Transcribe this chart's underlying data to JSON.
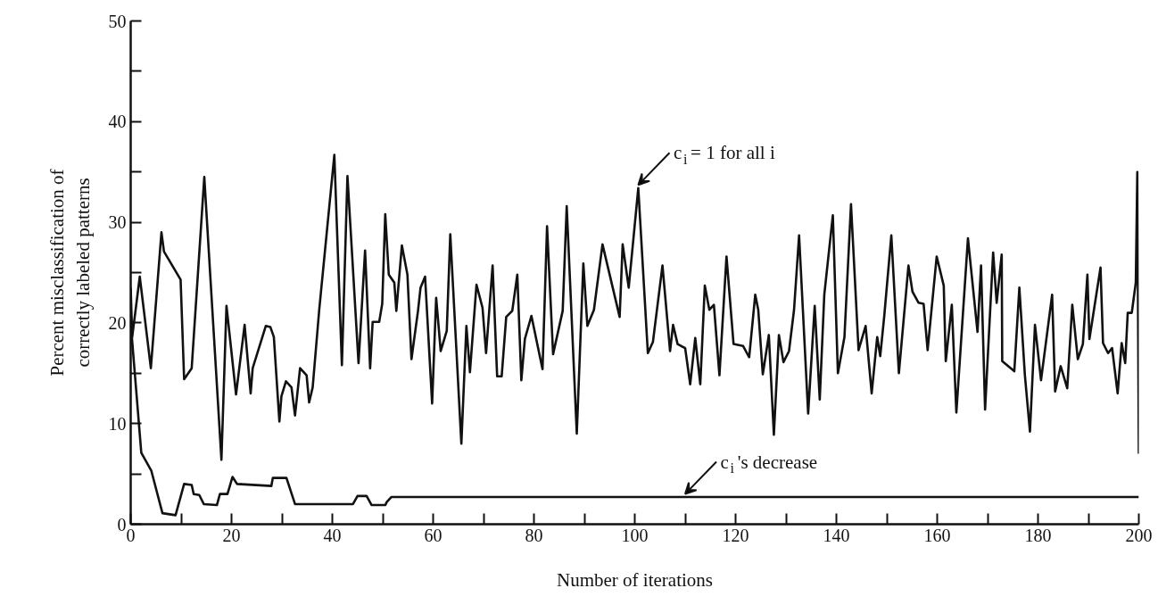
{
  "chart_data": {
    "type": "line",
    "xlabel": "Number of iterations",
    "ylabel": "Percent misclassification of correctly labeled patterns",
    "xlim": [
      0,
      200
    ],
    "ylim": [
      0,
      50
    ],
    "xticks": [
      0,
      {
        "value": 10,
        "label": null
      },
      20,
      {
        "value": 30,
        "label": null
      },
      40,
      {
        "value": 50,
        "label": null
      },
      60,
      {
        "value": 70,
        "label": null
      },
      80,
      {
        "value": 90,
        "label": null
      },
      100,
      {
        "value": 110,
        "label": null
      },
      120,
      {
        "value": 130,
        "label": null
      },
      140,
      {
        "value": 150,
        "label": null
      },
      160,
      {
        "value": 170,
        "label": null
      },
      180,
      {
        "value": 190,
        "label": null
      },
      200
    ],
    "yticks": [
      0,
      {
        "value": 5,
        "label": null
      },
      10,
      {
        "value": 15,
        "label": null
      },
      20,
      {
        "value": 25,
        "label": null
      },
      30,
      {
        "value": 35,
        "label": null
      },
      40,
      {
        "value": 45,
        "label": null
      },
      50
    ],
    "series": [
      {
        "color": "#111111",
        "x": [
          0,
          0.3,
          1.8,
          4.0,
          6.1,
          6.6,
          9.9,
          10.6,
          12.1,
          14.6,
          18.0,
          19.0,
          20.9,
          22.6,
          23.8,
          24.2,
          26.8,
          27.7,
          28.4,
          29.5,
          29.9,
          30.8,
          31.9,
          32.6,
          33.6,
          34.9,
          35.4,
          36.1,
          37.4,
          40.4,
          41.9,
          43.0,
          45.2,
          46.5,
          47.5,
          48.0,
          49.3,
          49.9,
          50.5,
          51.2,
          52.3,
          52.7,
          53.8,
          54.9,
          55.7,
          57.0,
          57.5,
          58.4,
          59.8,
          60.6,
          61.5,
          62.7,
          63.4,
          65.6,
          66.6,
          67.3,
          68.6,
          69.8,
          70.5,
          71.8,
          72.7,
          73.6,
          74.5,
          75.7,
          76.7,
          77.5,
          78.2,
          79.5,
          81.7,
          82.6,
          83.8,
          85.7,
          86.5,
          88.5,
          89.8,
          90.6,
          91.9,
          93.6,
          97.0,
          97.6,
          98.8,
          100.7,
          102.6,
          103.6,
          105.5,
          107.0,
          107.6,
          108.5,
          110.0,
          111.0,
          112.0,
          113.0,
          113.9,
          114.8,
          115.7,
          116.8,
          118.2,
          119.6,
          121.5,
          122.7,
          123.9,
          124.5,
          125.4,
          126.6,
          127.6,
          128.6,
          129.5,
          130.6,
          131.6,
          132.6,
          134.4,
          135.7,
          136.7,
          137.6,
          139.3,
          140.3,
          141.6,
          142.9,
          144.4,
          145.8,
          147.0,
          148.1,
          148.7,
          149.5,
          150.9,
          152.4,
          154.3,
          155.1,
          156.3,
          157.3,
          158.1,
          159.9,
          161.3,
          161.7,
          162.9,
          163.8,
          166.1,
          168.0,
          168.7,
          169.5,
          171.1,
          171.8,
          172.8,
          172.9,
          175.3,
          176.3,
          177.4,
          178.4,
          179.4,
          180.6,
          182.8,
          183.4,
          184.5,
          185.8,
          186.8,
          187.9,
          188.9,
          189.8,
          190.2,
          192.4,
          192.9,
          193.9,
          194.7,
          195.8,
          196.6,
          197.3,
          197.8,
          198.6,
          199.4,
          199.7,
          200
        ],
        "values": [
          23.5,
          18.6,
          24.6,
          15.5,
          29.0,
          27.1,
          24.3,
          14.4,
          15.5,
          34.5,
          6.4,
          21.7,
          12.9,
          19.8,
          13.0,
          15.5,
          19.7,
          19.6,
          18.6,
          10.2,
          12.7,
          14.2,
          13.6,
          10.8,
          15.5,
          14.8,
          12.1,
          13.6,
          21.3,
          36.7,
          15.8,
          34.6,
          16.0,
          27.2,
          15.5,
          20.1,
          20.1,
          21.9,
          30.8,
          24.8,
          24.0,
          21.2,
          27.7,
          24.8,
          16.4,
          21.2,
          23.5,
          24.6,
          12.0,
          22.5,
          17.2,
          19.2,
          28.8,
          8.0,
          19.7,
          15.1,
          23.8,
          21.5,
          17.0,
          25.7,
          14.7,
          14.7,
          20.6,
          21.2,
          24.8,
          14.3,
          18.4,
          20.7,
          15.4,
          29.6,
          16.9,
          21.2,
          31.6,
          9.0,
          25.9,
          19.7,
          21.3,
          27.8,
          20.6,
          27.8,
          23.5,
          33.4,
          17.0,
          18.1,
          25.7,
          17.2,
          19.8,
          17.9,
          17.5,
          13.9,
          18.5,
          13.9,
          23.7,
          21.3,
          21.8,
          14.8,
          26.6,
          17.9,
          17.7,
          16.6,
          22.8,
          21.3,
          14.9,
          18.8,
          8.9,
          18.8,
          16.1,
          17.2,
          21.3,
          28.7,
          11.0,
          21.7,
          12.4,
          22.8,
          30.7,
          15.0,
          18.6,
          31.8,
          17.3,
          19.7,
          13.0,
          18.6,
          16.7,
          20.7,
          28.7,
          15.0,
          25.7,
          23.1,
          22.0,
          21.9,
          17.3,
          26.6,
          23.7,
          16.2,
          21.8,
          11.1,
          28.4,
          19.1,
          25.7,
          11.4,
          27.0,
          22.0,
          26.8,
          16.2,
          15.2,
          23.5,
          14.8,
          9.2,
          19.8,
          14.3,
          22.8,
          13.2,
          15.7,
          13.5,
          21.8,
          16.4,
          17.9,
          24.8,
          18.4,
          25.5,
          18.0,
          17.0,
          17.5,
          13.0,
          18.0,
          16.0,
          21.0,
          21.0,
          24.0,
          35.0,
          7.0
        ]
      },
      {
        "color": "#111111",
        "x": [
          0,
          2.1,
          4.1,
          6.3,
          8.9,
          10.6,
          12.1,
          12.5,
          13.6,
          14.5,
          17.1,
          17.7,
          19.2,
          20.2,
          21.1,
          27.9,
          28.2,
          30.9,
          32.6,
          44.1,
          45.0,
          46.8,
          47.8,
          50.5,
          50.8,
          51.7,
          200
        ],
        "values": [
          20.0,
          7.1,
          5.3,
          1.1,
          0.9,
          4.0,
          3.9,
          3.0,
          2.9,
          2.0,
          1.9,
          3.0,
          3.0,
          4.7,
          4.0,
          3.8,
          4.6,
          4.6,
          2.0,
          2.0,
          2.8,
          2.8,
          1.9,
          1.9,
          2.2,
          2.7,
          2.7
        ]
      }
    ],
    "annotations": [
      {
        "text": "c$_{i}$ = 1  for all  i",
        "x": 100.7,
        "y": 33.4
      },
      {
        "text": "c$_{i}$'s decrease",
        "x": 110,
        "y": 2.7
      }
    ]
  }
}
